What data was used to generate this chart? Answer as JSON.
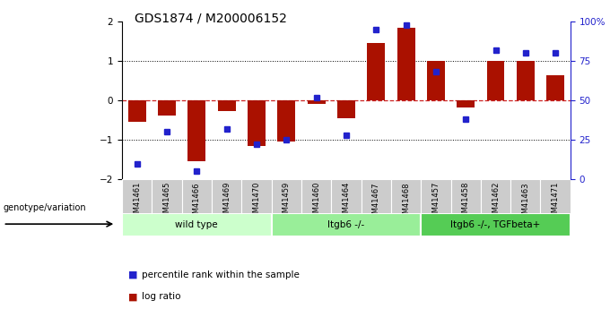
{
  "title": "GDS1874 / M200006152",
  "samples": [
    "GSM41461",
    "GSM41465",
    "GSM41466",
    "GSM41469",
    "GSM41470",
    "GSM41459",
    "GSM41460",
    "GSM41464",
    "GSM41467",
    "GSM41468",
    "GSM41457",
    "GSM41458",
    "GSM41462",
    "GSM41463",
    "GSM41471"
  ],
  "log_ratio": [
    -0.55,
    -0.38,
    -1.55,
    -0.28,
    -1.15,
    -1.05,
    -0.08,
    -0.45,
    1.45,
    1.85,
    1.0,
    -0.18,
    1.0,
    1.0,
    0.65
  ],
  "percentile": [
    10,
    30,
    5,
    32,
    22,
    25,
    52,
    28,
    95,
    98,
    68,
    38,
    82,
    80,
    80
  ],
  "groups": [
    {
      "label": "wild type",
      "start": 0,
      "end": 5,
      "color": "#ccffcc"
    },
    {
      "label": "Itgb6 -/-",
      "start": 5,
      "end": 10,
      "color": "#99ee99"
    },
    {
      "label": "Itgb6 -/-, TGFbeta+",
      "start": 10,
      "end": 15,
      "color": "#55cc55"
    }
  ],
  "bar_color": "#aa1100",
  "dot_color": "#2222cc",
  "left_ylim": [
    -2,
    2
  ],
  "right_ylim": [
    0,
    100
  ],
  "left_yticks": [
    -2,
    -1,
    0,
    1,
    2
  ],
  "right_yticks": [
    0,
    25,
    50,
    75,
    100
  ],
  "right_yticklabels": [
    "0",
    "25",
    "50",
    "75",
    "100%"
  ],
  "hlines_dotted": [
    -1,
    1
  ],
  "legend_items": [
    "log ratio",
    "percentile rank within the sample"
  ],
  "legend_colors": [
    "#aa1100",
    "#2222cc"
  ],
  "genotype_label": "genotype/variation",
  "background_color": "#ffffff",
  "bar_width": 0.6
}
